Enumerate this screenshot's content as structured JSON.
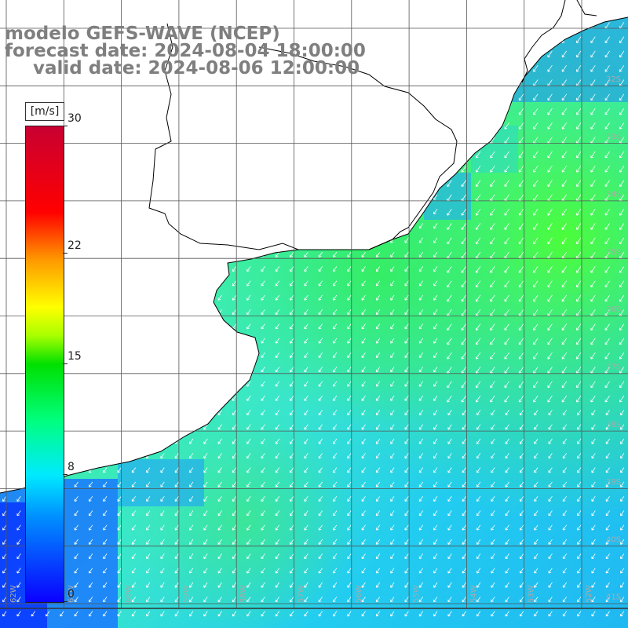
{
  "title": {
    "line1": "modelo GEFS-WAVE (NCEP)",
    "line2": "forecast date: 2024-08-04 18:00:00",
    "line3": "valid date: 2024-08-06 12:00:00"
  },
  "colorbar": {
    "units": "[m/s]",
    "min": 0,
    "max": 30,
    "ticks": [
      {
        "value": 30,
        "label": "30"
      },
      {
        "value": 22,
        "label": "22"
      },
      {
        "value": 15,
        "label": "15"
      },
      {
        "value": 8,
        "label": "8"
      },
      {
        "value": 0,
        "label": "0"
      }
    ]
  },
  "map": {
    "lat_labels": [
      "32S",
      "33S",
      "34S",
      "35S",
      "36S",
      "37S",
      "38S",
      "39S",
      "40S",
      "41S"
    ],
    "lon_labels": [
      "62W",
      "61W",
      "60W",
      "59W",
      "58W",
      "57W",
      "56W",
      "55W",
      "54W",
      "53W",
      "52W"
    ],
    "colors": {
      "land": "#ffffff",
      "coast": "#000000",
      "grid": "#555555",
      "arrow": "#ffffff"
    }
  }
}
